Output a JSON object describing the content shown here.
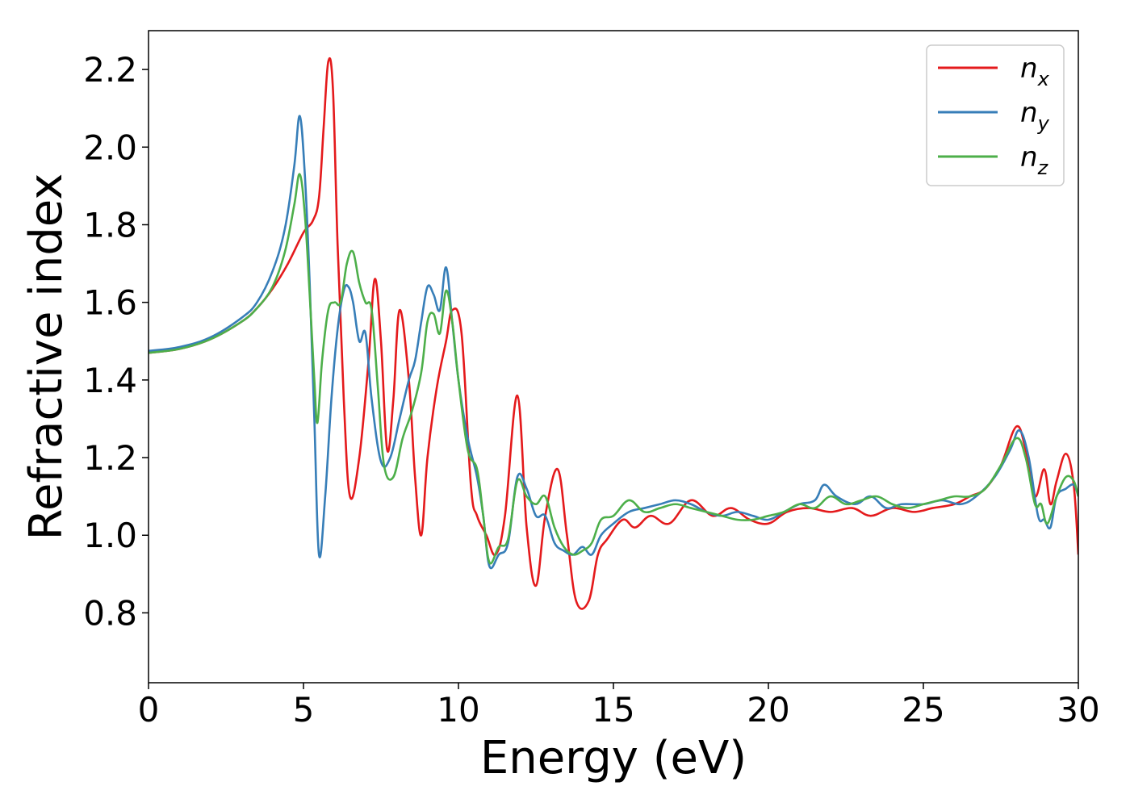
{
  "chart_data": {
    "type": "line",
    "xlabel": "Energy (eV)",
    "ylabel": "Refractive index",
    "xlim": [
      0,
      30
    ],
    "ylim": [
      0.62,
      2.3
    ],
    "xticks": [
      0,
      5,
      10,
      15,
      20,
      25,
      30
    ],
    "xtick_labels": [
      "0",
      "5",
      "10",
      "15",
      "20",
      "25",
      "30"
    ],
    "yticks": [
      0.8,
      1.0,
      1.2,
      1.4,
      1.6,
      1.8,
      2.0,
      2.2
    ],
    "ytick_labels": [
      "0.8",
      "1.0",
      "1.2",
      "1.4",
      "1.6",
      "1.8",
      "2.0",
      "2.2"
    ],
    "grid": false,
    "legend_position": "top-right",
    "series": [
      {
        "name": "n_x",
        "legend_base": "n",
        "legend_sub": "x",
        "color": "#e41a1c",
        "x": [
          0,
          1,
          2,
          3,
          3.5,
          4,
          4.5,
          5,
          5.3,
          5.5,
          5.65,
          5.8,
          5.95,
          6.1,
          6.3,
          6.5,
          6.8,
          7.1,
          7.3,
          7.5,
          7.7,
          7.9,
          8.1,
          8.4,
          8.6,
          8.8,
          9.0,
          9.3,
          9.6,
          9.8,
          10.1,
          10.4,
          10.6,
          10.9,
          11.2,
          11.5,
          11.9,
          12.2,
          12.5,
          12.8,
          13.2,
          13.5,
          13.8,
          14.2,
          14.5,
          14.8,
          15.3,
          15.7,
          16.2,
          16.8,
          17.5,
          18.2,
          18.8,
          19.4,
          20.0,
          20.6,
          21.3,
          22.0,
          22.7,
          23.3,
          24.0,
          24.7,
          25.3,
          26.0,
          26.5,
          27.0,
          27.5,
          28.0,
          28.3,
          28.6,
          28.9,
          29.1,
          29.3,
          29.6,
          29.85,
          30.0
        ],
        "y": [
          1.47,
          1.48,
          1.505,
          1.55,
          1.585,
          1.635,
          1.7,
          1.78,
          1.81,
          1.87,
          2.05,
          2.22,
          2.15,
          1.75,
          1.35,
          1.1,
          1.2,
          1.45,
          1.66,
          1.5,
          1.22,
          1.35,
          1.58,
          1.4,
          1.15,
          1.0,
          1.2,
          1.38,
          1.5,
          1.58,
          1.52,
          1.13,
          1.05,
          1.0,
          0.95,
          1.05,
          1.36,
          1.02,
          0.87,
          1.05,
          1.17,
          1.0,
          0.83,
          0.83,
          0.95,
          0.99,
          1.04,
          1.02,
          1.05,
          1.03,
          1.09,
          1.05,
          1.07,
          1.04,
          1.03,
          1.06,
          1.07,
          1.06,
          1.07,
          1.05,
          1.07,
          1.06,
          1.07,
          1.08,
          1.1,
          1.12,
          1.18,
          1.28,
          1.22,
          1.1,
          1.17,
          1.08,
          1.14,
          1.21,
          1.13,
          0.95
        ]
      },
      {
        "name": "n_y",
        "legend_base": "n",
        "legend_sub": "y",
        "color": "#377eb8",
        "x": [
          0,
          1,
          2,
          3,
          3.5,
          4,
          4.4,
          4.7,
          4.88,
          5.05,
          5.2,
          5.35,
          5.5,
          5.7,
          5.9,
          6.1,
          6.3,
          6.45,
          6.6,
          6.8,
          7.0,
          7.2,
          7.5,
          7.8,
          8.1,
          8.4,
          8.6,
          8.8,
          9.0,
          9.2,
          9.4,
          9.6,
          9.8,
          10.0,
          10.3,
          10.6,
          10.8,
          11.0,
          11.3,
          11.6,
          11.9,
          12.2,
          12.5,
          12.8,
          13.1,
          13.4,
          13.7,
          14.0,
          14.3,
          14.6,
          15.0,
          15.5,
          16.0,
          16.5,
          17.0,
          17.5,
          18.0,
          18.5,
          19.0,
          19.5,
          20.0,
          20.5,
          21.0,
          21.5,
          21.8,
          22.2,
          22.8,
          23.3,
          23.8,
          24.3,
          25.0,
          25.6,
          26.2,
          26.7,
          27.3,
          27.8,
          28.1,
          28.4,
          28.7,
          28.9,
          29.1,
          29.3,
          29.6,
          29.85,
          30.0
        ],
        "y": [
          1.475,
          1.485,
          1.51,
          1.56,
          1.6,
          1.68,
          1.79,
          1.95,
          2.08,
          1.92,
          1.65,
          1.3,
          0.95,
          1.1,
          1.35,
          1.53,
          1.63,
          1.64,
          1.6,
          1.5,
          1.52,
          1.35,
          1.19,
          1.2,
          1.3,
          1.4,
          1.45,
          1.55,
          1.64,
          1.62,
          1.58,
          1.69,
          1.55,
          1.4,
          1.25,
          1.15,
          1.05,
          0.92,
          0.95,
          0.98,
          1.15,
          1.12,
          1.05,
          1.05,
          0.98,
          0.96,
          0.95,
          0.97,
          0.95,
          1.0,
          1.03,
          1.06,
          1.07,
          1.08,
          1.09,
          1.08,
          1.06,
          1.05,
          1.06,
          1.05,
          1.04,
          1.06,
          1.08,
          1.09,
          1.13,
          1.1,
          1.08,
          1.1,
          1.07,
          1.08,
          1.08,
          1.09,
          1.08,
          1.1,
          1.15,
          1.22,
          1.27,
          1.2,
          1.05,
          1.04,
          1.02,
          1.1,
          1.12,
          1.13,
          1.1
        ]
      },
      {
        "name": "n_z",
        "legend_base": "n",
        "legend_sub": "z",
        "color": "#4daf4a",
        "x": [
          0,
          1,
          2,
          3,
          3.5,
          4,
          4.4,
          4.7,
          4.88,
          5.05,
          5.2,
          5.35,
          5.45,
          5.6,
          5.8,
          6.0,
          6.2,
          6.4,
          6.6,
          6.8,
          7.0,
          7.2,
          7.4,
          7.6,
          7.9,
          8.2,
          8.5,
          8.8,
          9.0,
          9.2,
          9.4,
          9.6,
          9.8,
          10.0,
          10.3,
          10.6,
          10.8,
          11.0,
          11.3,
          11.6,
          11.9,
          12.2,
          12.5,
          12.8,
          13.1,
          13.4,
          13.7,
          14.0,
          14.3,
          14.6,
          15.0,
          15.5,
          16.0,
          16.5,
          17.0,
          17.5,
          18.0,
          18.5,
          19.0,
          19.5,
          20.0,
          20.5,
          21.0,
          21.5,
          22.0,
          22.5,
          23.0,
          23.5,
          24.0,
          24.5,
          25.0,
          25.5,
          26.0,
          26.5,
          27.0,
          27.5,
          28.0,
          28.3,
          28.6,
          28.8,
          29.0,
          29.3,
          29.6,
          29.85,
          30.0
        ],
        "y": [
          1.47,
          1.48,
          1.505,
          1.55,
          1.585,
          1.64,
          1.73,
          1.85,
          1.93,
          1.82,
          1.62,
          1.4,
          1.29,
          1.45,
          1.58,
          1.6,
          1.6,
          1.7,
          1.73,
          1.65,
          1.6,
          1.58,
          1.38,
          1.18,
          1.15,
          1.25,
          1.32,
          1.42,
          1.55,
          1.57,
          1.52,
          1.63,
          1.55,
          1.4,
          1.22,
          1.17,
          1.05,
          0.93,
          0.97,
          0.99,
          1.14,
          1.1,
          1.08,
          1.1,
          1.02,
          0.97,
          0.95,
          0.96,
          0.98,
          1.04,
          1.05,
          1.09,
          1.06,
          1.07,
          1.08,
          1.07,
          1.06,
          1.05,
          1.04,
          1.04,
          1.05,
          1.06,
          1.08,
          1.07,
          1.1,
          1.08,
          1.09,
          1.1,
          1.08,
          1.07,
          1.08,
          1.09,
          1.1,
          1.1,
          1.12,
          1.18,
          1.25,
          1.2,
          1.08,
          1.08,
          1.03,
          1.1,
          1.15,
          1.14,
          1.1
        ]
      }
    ]
  }
}
